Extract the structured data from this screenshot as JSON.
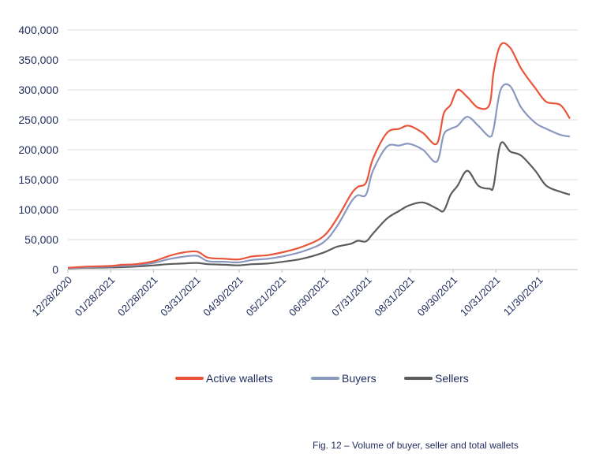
{
  "chart_data": {
    "type": "line",
    "title": "",
    "xlabel": "",
    "ylabel": "",
    "ylim": [
      0,
      400000
    ],
    "yticks": [
      0,
      50000,
      100000,
      150000,
      200000,
      250000,
      300000,
      350000,
      400000
    ],
    "ytick_labels": [
      "0",
      "50,000",
      "100,000",
      "150,000",
      "200,000",
      "250,000",
      "300,000",
      "350,000",
      "400,000"
    ],
    "xtick_labels": [
      "12/28/2020",
      "01/28/2021",
      "02/28/2021",
      "03/31/2021",
      "04/30/2021",
      "05/21/2021",
      "06/30/2021",
      "07/31/2021",
      "08/31/2021",
      "09/30/2021",
      "10/31/2021",
      "11/30/2021"
    ],
    "grid": "horizontal",
    "legend_position": "bottom",
    "x": [
      "2020-12-28",
      "2021-01-12",
      "2021-01-28",
      "2021-02-05",
      "2021-02-15",
      "2021-02-28",
      "2021-03-10",
      "2021-03-20",
      "2021-03-31",
      "2021-04-08",
      "2021-04-20",
      "2021-04-30",
      "2021-05-10",
      "2021-05-21",
      "2021-06-01",
      "2021-06-15",
      "2021-06-30",
      "2021-07-10",
      "2021-07-20",
      "2021-07-25",
      "2021-07-31",
      "2021-08-05",
      "2021-08-15",
      "2021-08-24",
      "2021-08-31",
      "2021-09-10",
      "2021-09-20",
      "2021-09-25",
      "2021-09-30",
      "2021-10-05",
      "2021-10-12",
      "2021-10-20",
      "2021-10-28",
      "2021-10-31",
      "2021-11-05",
      "2021-11-12",
      "2021-11-20",
      "2021-11-30",
      "2021-12-08",
      "2021-12-18",
      "2021-12-25"
    ],
    "series": [
      {
        "name": "Active wallets",
        "color": "#e8553a",
        "values": [
          3000,
          5000,
          6000,
          8000,
          9000,
          14000,
          22000,
          28000,
          30000,
          20000,
          18000,
          17000,
          22000,
          24000,
          29000,
          38000,
          55000,
          85000,
          125000,
          138000,
          145000,
          185000,
          228000,
          235000,
          240000,
          228000,
          210000,
          260000,
          275000,
          300000,
          288000,
          270000,
          275000,
          330000,
          375000,
          370000,
          335000,
          303000,
          280000,
          275000,
          252000
        ]
      },
      {
        "name": "Buyers",
        "color": "#8a98c0",
        "values": [
          2000,
          4000,
          5000,
          6000,
          7000,
          11000,
          17000,
          21000,
          23000,
          14000,
          13000,
          12000,
          16000,
          18000,
          22000,
          30000,
          45000,
          72000,
          112000,
          124000,
          125000,
          165000,
          205000,
          207000,
          210000,
          200000,
          180000,
          225000,
          235000,
          240000,
          255000,
          240000,
          222000,
          235000,
          300000,
          306000,
          270000,
          245000,
          235000,
          225000,
          222000
        ]
      },
      {
        "name": "Sellers",
        "color": "#5c5c5c",
        "values": [
          2000,
          3000,
          3500,
          4000,
          5000,
          7000,
          9000,
          10000,
          11000,
          9000,
          8000,
          7000,
          9000,
          10000,
          13000,
          18000,
          28000,
          38000,
          43000,
          48000,
          47000,
          60000,
          85000,
          98000,
          107000,
          112000,
          102000,
          98000,
          125000,
          140000,
          165000,
          140000,
          135000,
          140000,
          210000,
          197000,
          190000,
          165000,
          140000,
          130000,
          125000
        ]
      }
    ]
  },
  "caption": "Fig. 12 – Volume of buyer, seller and total wallets"
}
